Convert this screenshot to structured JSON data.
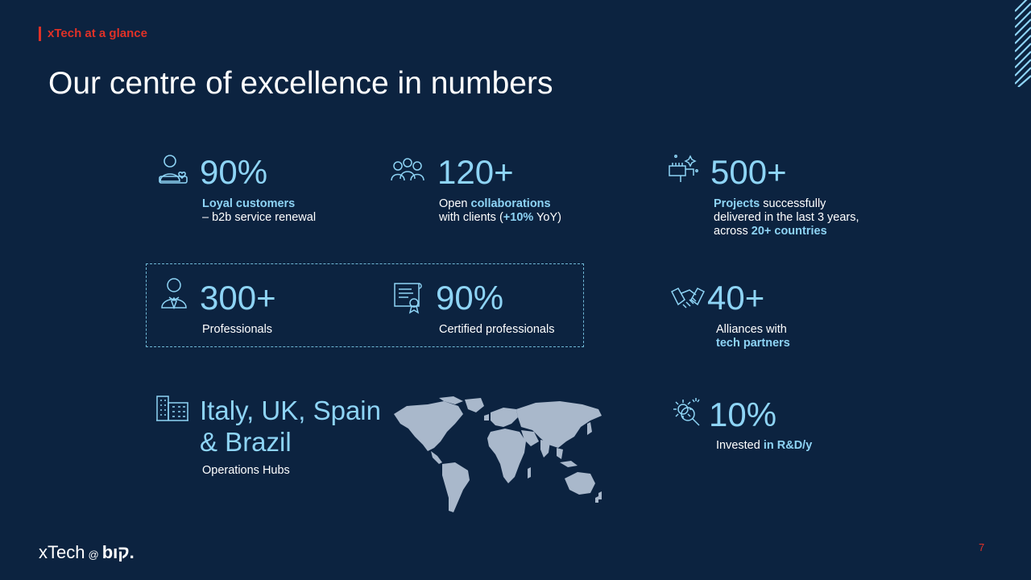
{
  "header": {
    "section_tag": "xTech  at a glance",
    "title": "Our centre of excellence in numbers"
  },
  "stats": {
    "loyal": {
      "value": "90%",
      "highlight": "Loyal customers",
      "line2": "– b2b service renewal",
      "icon": "customer-heart-icon"
    },
    "collab": {
      "value": "120+",
      "pre": "Open ",
      "highlight": "collaborations",
      "line2_pre": "with clients (",
      "line2_hl": "+10%",
      "line2_post": " YoY)",
      "icon": "team-icon"
    },
    "projects": {
      "value": "500+",
      "highlight": "Projects",
      "post": " successfully",
      "line2": "delivered in the last 3 years,",
      "line3_pre": "across ",
      "line3_hl": "20+ countries",
      "icon": "fist-sparkle-icon"
    },
    "professionals": {
      "value": "300+",
      "label": "Professionals",
      "icon": "professional-icon"
    },
    "certified": {
      "value": "90%",
      "label": "Certified professionals",
      "icon": "certificate-icon"
    },
    "alliances": {
      "value": "40+",
      "line1": "Alliances with",
      "highlight": "tech partners",
      "icon": "handshake-icon"
    },
    "hubs": {
      "line1": "Italy, UK, Spain",
      "line2": "& Brazil",
      "label": "Operations Hubs",
      "icon": "buildings-icon"
    },
    "rnd": {
      "value": "10%",
      "pre": "Invested ",
      "highlight": "in R&D/y",
      "icon": "gear-search-icon"
    }
  },
  "footer": {
    "logo_main": "xTech",
    "logo_at": "@",
    "logo_brand": "bıק.",
    "page_number": "7"
  },
  "colors": {
    "background": "#0c2340",
    "accent": "#8ed4f5",
    "tag_red": "#e03127"
  }
}
